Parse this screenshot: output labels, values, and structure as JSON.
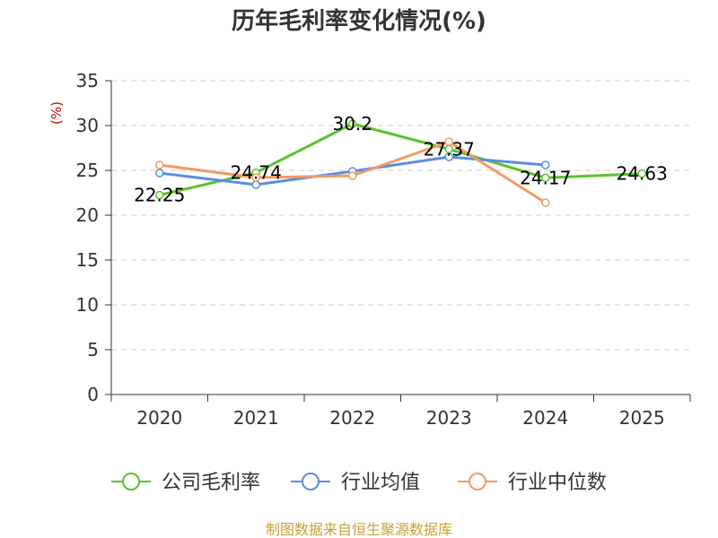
{
  "chart_data": {
    "type": "line",
    "title": "历年毛利率变化情况(%)",
    "ylabel": "(%)",
    "ylabel_color": "#cc0000",
    "categories": [
      "2020",
      "2021",
      "2022",
      "2023",
      "2024",
      "2025"
    ],
    "ylim": [
      0,
      35
    ],
    "yticks": [
      "0",
      "5",
      "10",
      "15",
      "20",
      "25",
      "30",
      "35"
    ],
    "grid": true,
    "legend_position": "bottom",
    "series": [
      {
        "name": "公司毛利率",
        "color": "#5cc22a",
        "values": [
          22.25,
          24.74,
          30.2,
          27.37,
          24.17,
          24.63
        ],
        "labels": [
          "22.25",
          "24.74",
          "30.2",
          "27.37",
          "24.17",
          "24.63"
        ]
      },
      {
        "name": "行业均值",
        "color": "#5b8ddf",
        "values": [
          24.7,
          23.4,
          24.9,
          26.5,
          25.6,
          null
        ]
      },
      {
        "name": "行业中位数",
        "color": "#f39a62",
        "values": [
          25.6,
          24.2,
          24.4,
          28.2,
          21.4,
          null
        ]
      }
    ],
    "source": "制图数据来自恒生聚源数据库",
    "source_color": "#c7a23a"
  }
}
